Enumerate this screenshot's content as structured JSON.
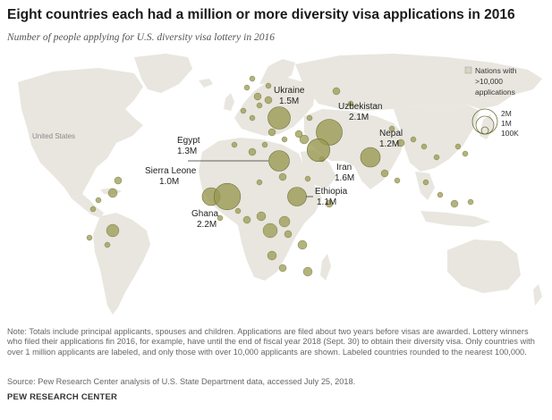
{
  "title": "Eight countries each had a million or more diversity visa applications in 2016",
  "subtitle": "Number of people applying for U.S. diversity visa lottery in 2016",
  "note": "Note: Totals include principal applicants, spouses and children. Applications are filed about two years before visas are awarded. Lottery winners who filed their applications fin 2016, for example, have until the end of fiscal year 2018 (Sept. 30) to obtain their diversity visa. Only countries with over 1 million applicants are labeled, and only those with over 10,000 applicants are shown. Labeled countries rounded to the nearest 100,000.",
  "source": "Source: Pew Research Center analysis of U.S. State Department data, accessed July 25, 2018.",
  "credit": "PEW RESEARCH CENTER",
  "map_labels": {
    "united_states": "United States"
  },
  "legend": {
    "nations_label_line1": "Nations with",
    "nations_label_line2": ">10,000",
    "nations_label_line3": "applications",
    "sizes": [
      {
        "label": "2M",
        "value": 2000000
      },
      {
        "label": "1M",
        "value": 1000000
      },
      {
        "label": "100K",
        "value": 100000
      }
    ]
  },
  "colors": {
    "land": "#e8e6df",
    "highlight_land": "#d9d3bf",
    "bubble_fill": "#9a9a52",
    "bubble_stroke": "#6f6f3a",
    "leader": "#333333"
  },
  "labeled_countries": [
    {
      "name": "Ukraine",
      "value_label": "1.5M",
      "value": 1500000
    },
    {
      "name": "Uzbekistan",
      "value_label": "2.1M",
      "value": 2100000
    },
    {
      "name": "Egypt",
      "value_label": "1.3M",
      "value": 1300000
    },
    {
      "name": "Nepal",
      "value_label": "1.2M",
      "value": 1200000
    },
    {
      "name": "Iran",
      "value_label": "1.6M",
      "value": 1600000
    },
    {
      "name": "Sierra Leone",
      "value_label": "1.0M",
      "value": 1000000
    },
    {
      "name": "Ethiopia",
      "value_label": "1.1M",
      "value": 1100000
    },
    {
      "name": "Ghana",
      "value_label": "2.2M",
      "value": 2200000
    }
  ]
}
